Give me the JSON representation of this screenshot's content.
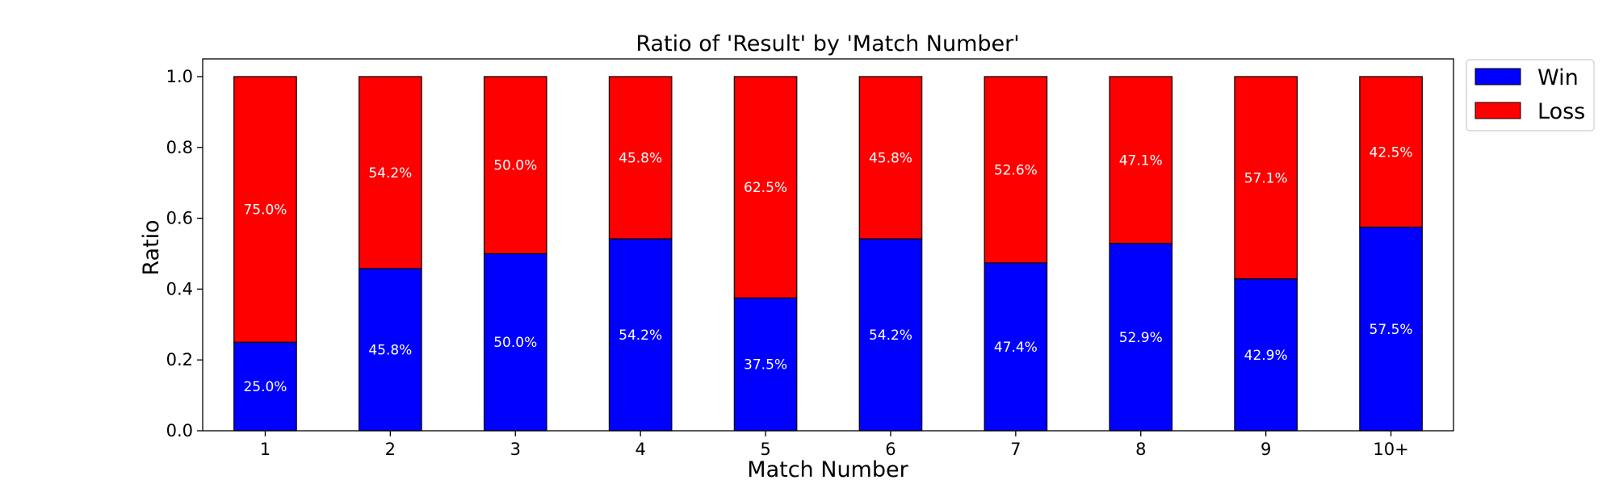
{
  "chart_data": {
    "type": "bar",
    "stacked": true,
    "title": "Ratio of 'Result' by 'Match Number'",
    "xlabel": "Match Number",
    "ylabel": "Ratio",
    "categories": [
      "1",
      "2",
      "3",
      "4",
      "5",
      "6",
      "7",
      "8",
      "9",
      "10+"
    ],
    "series": [
      {
        "name": "Win",
        "color": "#0000ff",
        "values": [
          0.25,
          0.458,
          0.5,
          0.542,
          0.375,
          0.542,
          0.474,
          0.529,
          0.429,
          0.575
        ],
        "labels": [
          "25.0%",
          "45.8%",
          "50.0%",
          "54.2%",
          "37.5%",
          "54.2%",
          "47.4%",
          "52.9%",
          "42.9%",
          "57.5%"
        ]
      },
      {
        "name": "Loss",
        "color": "#ff0000",
        "values": [
          0.75,
          0.542,
          0.5,
          0.458,
          0.625,
          0.458,
          0.526,
          0.471,
          0.571,
          0.425
        ],
        "labels": [
          "75.0%",
          "54.2%",
          "50.0%",
          "45.8%",
          "62.5%",
          "45.8%",
          "52.6%",
          "47.1%",
          "57.1%",
          "42.5%"
        ]
      }
    ],
    "ylim": [
      0,
      1.05
    ],
    "yticks": [
      "0.0",
      "0.2",
      "0.4",
      "0.6",
      "0.8",
      "1.0"
    ],
    "grid": false,
    "legend": "outside-top-right"
  }
}
